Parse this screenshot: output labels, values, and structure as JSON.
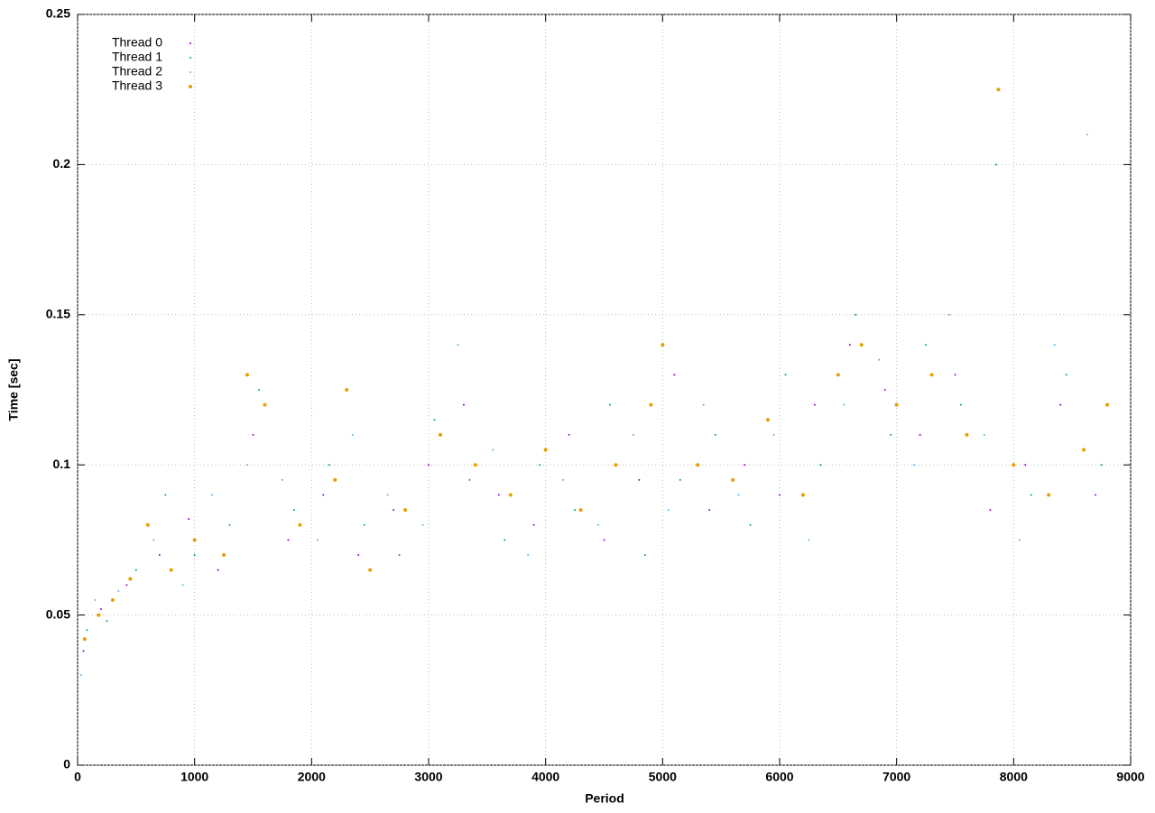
{
  "chart_data": {
    "type": "scatter",
    "xlabel": "Period",
    "ylabel": "Time [sec]",
    "xlim": [
      0,
      9000
    ],
    "xticks": [
      0,
      1000,
      2000,
      3000,
      4000,
      5000,
      6000,
      7000,
      8000,
      9000
    ],
    "ylim": [
      0,
      0.25
    ],
    "yticks": [
      0,
      0.05,
      0.1,
      0.15,
      0.2,
      0.25
    ],
    "grid": true,
    "legend": "upper left",
    "series": [
      {
        "name": "Thread 0",
        "color": "#9400d3",
        "x": [
          50,
          200,
          420,
          700,
          950,
          1200,
          1500,
          1800,
          2100,
          2400,
          2700,
          3000,
          3300,
          3600,
          3900,
          4200,
          4500,
          4800,
          5100,
          5400,
          5700,
          6000,
          6300,
          6600,
          6900,
          7200,
          7500,
          7800,
          8100,
          8400,
          8700
        ],
        "values": [
          0.038,
          0.052,
          0.06,
          0.07,
          0.082,
          0.065,
          0.11,
          0.075,
          0.09,
          0.07,
          0.085,
          0.1,
          0.12,
          0.09,
          0.08,
          0.11,
          0.075,
          0.095,
          0.13,
          0.085,
          0.1,
          0.09,
          0.12,
          0.14,
          0.125,
          0.11,
          0.13,
          0.085,
          0.1,
          0.12,
          0.09
        ]
      },
      {
        "name": "Thread 1",
        "color": "#009e73",
        "x": [
          80,
          250,
          500,
          750,
          1000,
          1300,
          1550,
          1850,
          2150,
          2450,
          2750,
          3050,
          3350,
          3650,
          3950,
          4250,
          4550,
          4850,
          5150,
          5450,
          5750,
          6050,
          6350,
          6650,
          6950,
          7250,
          7550,
          7850,
          8150,
          8450,
          8750
        ],
        "values": [
          0.045,
          0.048,
          0.065,
          0.09,
          0.07,
          0.08,
          0.125,
          0.085,
          0.1,
          0.08,
          0.07,
          0.115,
          0.095,
          0.075,
          0.1,
          0.085,
          0.12,
          0.07,
          0.095,
          0.11,
          0.08,
          0.13,
          0.1,
          0.15,
          0.11,
          0.14,
          0.12,
          0.2,
          0.09,
          0.13,
          0.1
        ]
      },
      {
        "name": "Thread 2",
        "color": "#56b4e9",
        "x": [
          30,
          150,
          350,
          650,
          900,
          1150,
          1450,
          1750,
          2050,
          2350,
          2650,
          2950,
          3250,
          3550,
          3850,
          4150,
          4450,
          4750,
          5050,
          5350,
          5650,
          5950,
          6250,
          6550,
          6850,
          7150,
          7450,
          7750,
          8050,
          8350,
          8630
        ],
        "values": [
          0.03,
          0.055,
          0.058,
          0.075,
          0.06,
          0.09,
          0.1,
          0.095,
          0.075,
          0.11,
          0.09,
          0.08,
          0.14,
          0.105,
          0.07,
          0.095,
          0.08,
          0.11,
          0.085,
          0.12,
          0.09,
          0.11,
          0.075,
          0.12,
          0.135,
          0.1,
          0.15,
          0.11,
          0.075,
          0.14,
          0.21
        ]
      },
      {
        "name": "Thread 3",
        "color": "#e69f00",
        "x": [
          60,
          180,
          300,
          450,
          600,
          800,
          1000,
          1250,
          1450,
          1600,
          1900,
          2200,
          2300,
          2500,
          2800,
          3100,
          3400,
          3700,
          4000,
          4300,
          4600,
          4900,
          5000,
          5300,
          5600,
          5900,
          6200,
          6500,
          6700,
          7000,
          7300,
          7600,
          7870,
          8000,
          8300,
          8600,
          8800
        ],
        "values": [
          0.042,
          0.05,
          0.055,
          0.062,
          0.08,
          0.065,
          0.075,
          0.07,
          0.13,
          0.12,
          0.08,
          0.095,
          0.125,
          0.065,
          0.085,
          0.11,
          0.1,
          0.09,
          0.105,
          0.085,
          0.1,
          0.12,
          0.14,
          0.1,
          0.095,
          0.115,
          0.09,
          0.13,
          0.14,
          0.12,
          0.13,
          0.11,
          0.225,
          0.1,
          0.09,
          0.105,
          0.12
        ]
      }
    ]
  }
}
